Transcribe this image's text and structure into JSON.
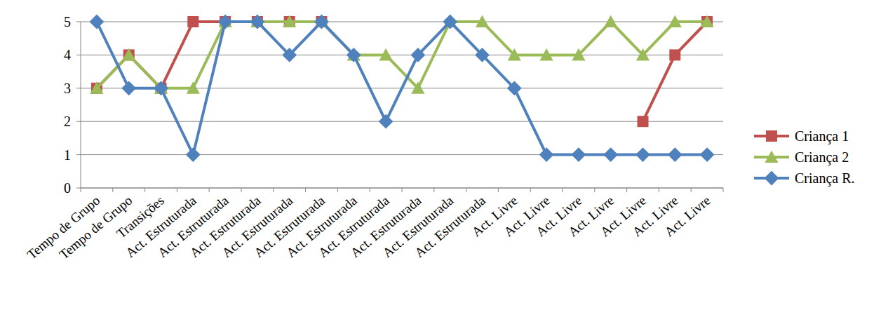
{
  "chart_data": {
    "type": "line",
    "categories": [
      "Tempo de Grupo",
      "Tempo de Grupo",
      "Transições",
      "Act. Estruturada",
      "Act. Estruturada",
      "Act. Estruturada",
      "Act. Estruturada",
      "Act. Estruturada",
      "Act. Estruturada",
      "Act. Estruturada",
      "Act. Estruturada",
      "Act. Estruturada",
      "Act. Estruturada",
      "Act. Livre",
      "Act. Livre",
      "Act. Livre",
      "Act. Livre",
      "Act. Livre",
      "Act. Livre",
      "Act. Livre"
    ],
    "series": [
      {
        "name": "Criança 1",
        "color": "#c0504d",
        "marker": "square",
        "values": [
          3,
          4,
          3,
          5,
          5,
          5,
          5,
          5,
          null,
          null,
          null,
          null,
          null,
          null,
          null,
          null,
          null,
          2,
          4,
          5
        ]
      },
      {
        "name": "Criança 2",
        "color": "#9bbb59",
        "marker": "triangle",
        "values": [
          3,
          4,
          3,
          3,
          5,
          5,
          5,
          5,
          4,
          4,
          3,
          5,
          5,
          4,
          4,
          4,
          5,
          4,
          5,
          5
        ]
      },
      {
        "name": "Criança R.",
        "color": "#4f81bd",
        "marker": "diamond",
        "values": [
          5,
          3,
          3,
          1,
          5,
          5,
          4,
          5,
          4,
          2,
          4,
          5,
          4,
          3,
          1,
          1,
          1,
          1,
          1,
          1
        ]
      }
    ],
    "ylim": [
      0,
      5
    ],
    "yticks": [
      0,
      1,
      2,
      3,
      4,
      5
    ],
    "grid": true,
    "legend": "right"
  }
}
